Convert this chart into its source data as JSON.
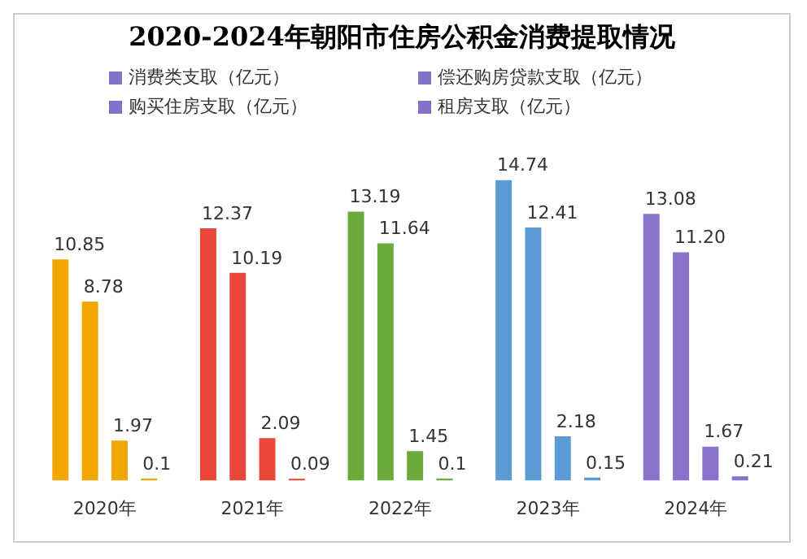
{
  "chart_data": {
    "type": "bar",
    "title": "2020-2024年朝阳市住房公积金消费提取情况",
    "categories": [
      "2020年",
      "2021年",
      "2022年",
      "2023年",
      "2024年"
    ],
    "legend": "top",
    "series": [
      {
        "name": "消费类支取（亿元）",
        "color": "#8470c8",
        "colors": [
          "#f0a800",
          "#e8473a",
          "#6aaa3c",
          "#5b9bd5",
          "#8a72cc"
        ],
        "values": [
          10.85,
          12.37,
          13.19,
          14.74,
          13.08
        ],
        "value_labels": [
          "10.85",
          "12.37",
          "13.19",
          "14.74",
          "13.08"
        ]
      },
      {
        "name": "偿还购房贷款支取（亿元）",
        "color": "#8470c8",
        "colors": [
          "#f0a800",
          "#e8473a",
          "#6aaa3c",
          "#5b9bd5",
          "#8a72cc"
        ],
        "values": [
          8.78,
          10.19,
          11.64,
          12.41,
          11.2
        ],
        "value_labels": [
          "8.78",
          "10.19",
          "11.64",
          "12.41",
          "11.20"
        ]
      },
      {
        "name": "购买住房支取（亿元）",
        "color": "#8470c8",
        "colors": [
          "#f0a800",
          "#e8473a",
          "#6aaa3c",
          "#5b9bd5",
          "#8a72cc"
        ],
        "values": [
          1.97,
          2.09,
          1.45,
          2.18,
          1.67
        ],
        "value_labels": [
          "1.97",
          "2.09",
          "1.45",
          "2.18",
          "1.67"
        ]
      },
      {
        "name": "租房支取（亿元）",
        "color": "#8470c8",
        "colors": [
          "#f0a800",
          "#e8473a",
          "#6aaa3c",
          "#5b9bd5",
          "#8a72cc"
        ],
        "values": [
          0.1,
          0.09,
          0.1,
          0.15,
          0.21
        ],
        "value_labels": [
          "0.1",
          "0.09",
          "0.1",
          "0.15",
          "0.21"
        ]
      }
    ]
  }
}
